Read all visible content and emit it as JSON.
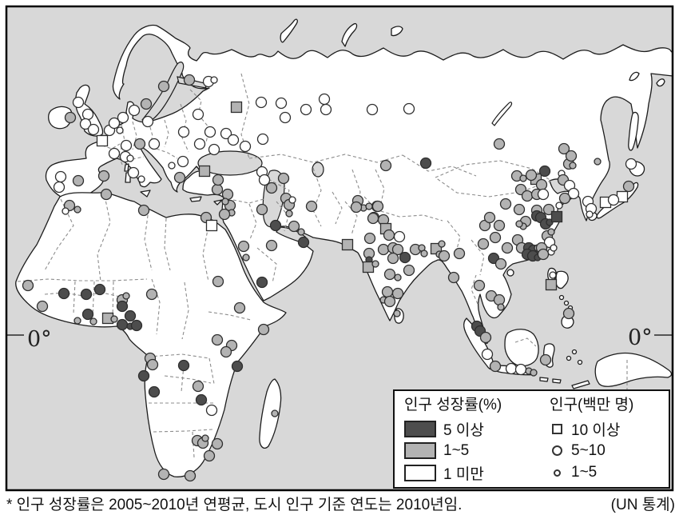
{
  "colors": {
    "ocean": "#d8d8d8",
    "land": "#ffffff",
    "coast": "#1c1c1c",
    "border_dash": "#8c8c8c",
    "marker_stroke": "#2e2e2e",
    "high": "#4d4d4d",
    "mid": "#b3b3b3",
    "low": "#ffffff"
  },
  "map": {
    "equator": {
      "left": "0°",
      "right": "0°"
    },
    "cities": [
      [
        98,
        128,
        "l",
        "b"
      ],
      [
        110,
        143,
        "l",
        "b"
      ],
      [
        107,
        155,
        "l",
        "b"
      ],
      [
        117,
        162,
        "l",
        "b"
      ],
      [
        88,
        147,
        "m",
        "b"
      ],
      [
        128,
        176,
        "l",
        "q"
      ],
      [
        137,
        163,
        "l",
        "b"
      ],
      [
        143,
        154,
        "l",
        "b"
      ],
      [
        150,
        163,
        "l",
        "s"
      ],
      [
        154,
        147,
        "l",
        "b"
      ],
      [
        168,
        138,
        "l",
        "b"
      ],
      [
        183,
        130,
        "m",
        "b"
      ],
      [
        205,
        108,
        "m",
        "b"
      ],
      [
        237,
        100,
        "m",
        "b"
      ],
      [
        261,
        102,
        "l",
        "b"
      ],
      [
        268,
        100,
        "l",
        "s"
      ],
      [
        185,
        152,
        "l",
        "b"
      ],
      [
        158,
        182,
        "l",
        "b"
      ],
      [
        143,
        192,
        "l",
        "b"
      ],
      [
        175,
        180,
        "m",
        "b"
      ],
      [
        193,
        180,
        "l",
        "b"
      ],
      [
        157,
        196,
        "l",
        "b"
      ],
      [
        163,
        198,
        "l",
        "s"
      ],
      [
        98,
        226,
        "m",
        "b"
      ],
      [
        130,
        220,
        "m",
        "b"
      ],
      [
        76,
        221,
        "l",
        "b"
      ],
      [
        74,
        234,
        "l",
        "b"
      ],
      [
        167,
        216,
        "l",
        "b"
      ],
      [
        177,
        224,
        "l",
        "s"
      ],
      [
        229,
        202,
        "l",
        "b"
      ],
      [
        215,
        207,
        "l",
        "s"
      ],
      [
        225,
        222,
        "m",
        "b"
      ],
      [
        272,
        237,
        "m",
        "b"
      ],
      [
        296,
        134,
        "m",
        "q"
      ],
      [
        248,
        143,
        "l",
        "b"
      ],
      [
        230,
        165,
        "l",
        "b"
      ],
      [
        263,
        165,
        "l",
        "b"
      ],
      [
        283,
        167,
        "l",
        "b"
      ],
      [
        292,
        175,
        "l",
        "b"
      ],
      [
        250,
        180,
        "l",
        "b"
      ],
      [
        268,
        187,
        "l",
        "b"
      ],
      [
        327,
        128,
        "l",
        "b"
      ],
      [
        352,
        129,
        "l",
        "b"
      ],
      [
        383,
        137,
        "l",
        "b"
      ],
      [
        406,
        124,
        "l",
        "b"
      ],
      [
        408,
        137,
        "l",
        "b"
      ],
      [
        466,
        137,
        "l",
        "b"
      ],
      [
        512,
        136,
        "l",
        "b"
      ],
      [
        357,
        147,
        "l",
        "b"
      ],
      [
        329,
        174,
        "l",
        "b"
      ],
      [
        307,
        183,
        "l",
        "b"
      ],
      [
        483,
        207,
        "m",
        "b"
      ],
      [
        533,
        204,
        "h",
        "b"
      ],
      [
        625,
        180,
        "m",
        "b"
      ],
      [
        328,
        215,
        "l",
        "b"
      ],
      [
        331,
        225,
        "l",
        "b"
      ],
      [
        355,
        223,
        "m",
        "b"
      ],
      [
        340,
        235,
        "m",
        "b"
      ],
      [
        358,
        248,
        "m",
        "b"
      ],
      [
        362,
        256,
        "m",
        "b"
      ],
      [
        366,
        250,
        "l",
        "s"
      ],
      [
        390,
        258,
        "m",
        "b"
      ],
      [
        362,
        267,
        "m",
        "s"
      ],
      [
        368,
        283,
        "m",
        "b"
      ],
      [
        377,
        290,
        "m",
        "s"
      ],
      [
        448,
        251,
        "m",
        "b"
      ],
      [
        455,
        260,
        "m",
        "s"
      ],
      [
        472,
        258,
        "m",
        "b"
      ],
      [
        468,
        272,
        "m",
        "b"
      ],
      [
        446,
        259,
        "m",
        "b"
      ],
      [
        328,
        262,
        "m",
        "b"
      ],
      [
        285,
        243,
        "m",
        "b"
      ],
      [
        288,
        257,
        "m",
        "b"
      ],
      [
        282,
        252,
        "m",
        "s"
      ],
      [
        290,
        266,
        "m",
        "s"
      ],
      [
        281,
        268,
        "m",
        "b"
      ],
      [
        345,
        282,
        "h",
        "b"
      ],
      [
        340,
        307,
        "m",
        "b"
      ],
      [
        305,
        308,
        "m",
        "b"
      ],
      [
        308,
        322,
        "m",
        "s"
      ],
      [
        380,
        303,
        "h",
        "b"
      ],
      [
        328,
        353,
        "h",
        "b"
      ],
      [
        256,
        214,
        "m",
        "q"
      ],
      [
        273,
        225,
        "m",
        "b"
      ],
      [
        87,
        257,
        "m",
        "b"
      ],
      [
        97,
        262,
        "m",
        "s"
      ],
      [
        82,
        264,
        "l",
        "s"
      ],
      [
        133,
        243,
        "m",
        "b"
      ],
      [
        180,
        263,
        "m",
        "b"
      ],
      [
        258,
        272,
        "m",
        "b"
      ],
      [
        265,
        282,
        "l",
        "q"
      ],
      [
        273,
        352,
        "m",
        "b"
      ],
      [
        300,
        385,
        "m",
        "b"
      ],
      [
        330,
        412,
        "m",
        "b"
      ],
      [
        35,
        357,
        "m",
        "b"
      ],
      [
        53,
        383,
        "m",
        "b"
      ],
      [
        80,
        367,
        "h",
        "b"
      ],
      [
        108,
        368,
        "h",
        "b"
      ],
      [
        125,
        362,
        "h",
        "b"
      ],
      [
        153,
        375,
        "m",
        "b"
      ],
      [
        158,
        370,
        "m",
        "s"
      ],
      [
        153,
        383,
        "h",
        "b"
      ],
      [
        163,
        395,
        "h",
        "b"
      ],
      [
        190,
        368,
        "m",
        "b"
      ],
      [
        110,
        393,
        "h",
        "b"
      ],
      [
        117,
        402,
        "m",
        "s"
      ],
      [
        135,
        398,
        "m",
        "q"
      ],
      [
        143,
        399,
        "m",
        "s"
      ],
      [
        97,
        401,
        "m",
        "s"
      ],
      [
        153,
        406,
        "h",
        "b"
      ],
      [
        163,
        408,
        "h",
        "s"
      ],
      [
        171,
        407,
        "h",
        "b"
      ],
      [
        188,
        448,
        "m",
        "b"
      ],
      [
        191,
        456,
        "m",
        "b"
      ],
      [
        230,
        457,
        "h",
        "b"
      ],
      [
        180,
        470,
        "h",
        "b"
      ],
      [
        193,
        490,
        "h",
        "b"
      ],
      [
        248,
        483,
        "m",
        "b"
      ],
      [
        252,
        500,
        "h",
        "b"
      ],
      [
        265,
        513,
        "l",
        "b"
      ],
      [
        272,
        425,
        "m",
        "b"
      ],
      [
        290,
        432,
        "m",
        "b"
      ],
      [
        283,
        440,
        "m",
        "b"
      ],
      [
        297,
        458,
        "h",
        "b"
      ],
      [
        344,
        517,
        "m",
        "s"
      ],
      [
        247,
        551,
        "m",
        "b"
      ],
      [
        254,
        554,
        "m",
        "b"
      ],
      [
        257,
        548,
        "m",
        "s"
      ],
      [
        272,
        555,
        "m",
        "b"
      ],
      [
        262,
        570,
        "m",
        "b"
      ],
      [
        205,
        593,
        "m",
        "b"
      ],
      [
        238,
        595,
        "m",
        "b"
      ],
      [
        462,
        258,
        "m",
        "s"
      ],
      [
        473,
        258,
        "m",
        "b"
      ],
      [
        467,
        273,
        "m",
        "b"
      ],
      [
        480,
        275,
        "m",
        "b"
      ],
      [
        483,
        286,
        "m",
        "q"
      ],
      [
        487,
        294,
        "m",
        "b"
      ],
      [
        463,
        298,
        "m",
        "b"
      ],
      [
        480,
        312,
        "m",
        "b"
      ],
      [
        492,
        310,
        "m",
        "b"
      ],
      [
        500,
        296,
        "l",
        "b"
      ],
      [
        498,
        312,
        "m",
        "b"
      ],
      [
        435,
        306,
        "m",
        "q"
      ],
      [
        462,
        317,
        "m",
        "b"
      ],
      [
        462,
        325,
        "h",
        "s"
      ],
      [
        461,
        334,
        "m",
        "q"
      ],
      [
        470,
        330,
        "m",
        "s"
      ],
      [
        492,
        323,
        "m",
        "b"
      ],
      [
        507,
        322,
        "h",
        "b"
      ],
      [
        512,
        338,
        "m",
        "b"
      ],
      [
        520,
        312,
        "m",
        "b"
      ],
      [
        528,
        310,
        "m",
        "s"
      ],
      [
        531,
        317,
        "m",
        "s"
      ],
      [
        546,
        311,
        "m",
        "q"
      ],
      [
        550,
        318,
        "m",
        "s"
      ],
      [
        556,
        320,
        "m",
        "b"
      ],
      [
        553,
        305,
        "m",
        "s"
      ],
      [
        488,
        343,
        "m",
        "b"
      ],
      [
        498,
        347,
        "m",
        "s"
      ],
      [
        485,
        365,
        "m",
        "b"
      ],
      [
        498,
        367,
        "m",
        "b"
      ],
      [
        480,
        375,
        "m",
        "s"
      ],
      [
        488,
        377,
        "m",
        "b"
      ],
      [
        497,
        392,
        "m",
        "s"
      ],
      [
        568,
        347,
        "m",
        "b"
      ],
      [
        575,
        317,
        "m",
        "b"
      ],
      [
        671,
        224,
        "m",
        "q"
      ],
      [
        678,
        231,
        "m",
        "b"
      ],
      [
        647,
        220,
        "m",
        "b"
      ],
      [
        655,
        223,
        "m",
        "s"
      ],
      [
        665,
        219,
        "m",
        "b"
      ],
      [
        682,
        214,
        "h",
        "b"
      ],
      [
        712,
        205,
        "m",
        "b"
      ],
      [
        717,
        207,
        "m",
        "s"
      ],
      [
        706,
        186,
        "m",
        "b"
      ],
      [
        715,
        195,
        "m",
        "b"
      ],
      [
        748,
        202,
        "m",
        "s"
      ],
      [
        652,
        237,
        "m",
        "b"
      ],
      [
        660,
        245,
        "m",
        "b"
      ],
      [
        672,
        243,
        "m",
        "b"
      ],
      [
        680,
        243,
        "l",
        "b"
      ],
      [
        703,
        217,
        "l",
        "s"
      ],
      [
        705,
        225,
        "m",
        "b"
      ],
      [
        713,
        232,
        "l",
        "b"
      ],
      [
        718,
        242,
        "l",
        "b"
      ],
      [
        707,
        248,
        "m",
        "b"
      ],
      [
        700,
        257,
        "l",
        "s"
      ],
      [
        650,
        262,
        "m",
        "b"
      ],
      [
        658,
        277,
        "m",
        "b"
      ],
      [
        655,
        283,
        "m",
        "s"
      ],
      [
        650,
        280,
        "m",
        "s"
      ],
      [
        672,
        263,
        "m",
        "b"
      ],
      [
        687,
        262,
        "m",
        "b"
      ],
      [
        672,
        270,
        "h",
        "b"
      ],
      [
        677,
        272,
        "h",
        "b"
      ],
      [
        683,
        280,
        "h",
        "b"
      ],
      [
        688,
        278,
        "h",
        "s"
      ],
      [
        697,
        271,
        "h",
        "q"
      ],
      [
        685,
        295,
        "m",
        "b"
      ],
      [
        690,
        290,
        "m",
        "s"
      ],
      [
        688,
        303,
        "l",
        "b"
      ],
      [
        690,
        315,
        "l",
        "s"
      ],
      [
        693,
        310,
        "l",
        "s"
      ],
      [
        648,
        300,
        "m",
        "b"
      ],
      [
        653,
        310,
        "m",
        "b"
      ],
      [
        662,
        310,
        "h",
        "b"
      ],
      [
        668,
        313,
        "h",
        "b"
      ],
      [
        673,
        310,
        "m",
        "s"
      ],
      [
        678,
        310,
        "m",
        "b"
      ],
      [
        660,
        318,
        "h",
        "b"
      ],
      [
        667,
        320,
        "h",
        "b"
      ],
      [
        673,
        322,
        "h",
        "s"
      ],
      [
        680,
        318,
        "m",
        "b"
      ],
      [
        618,
        323,
        "h",
        "b"
      ],
      [
        627,
        330,
        "m",
        "b"
      ],
      [
        607,
        282,
        "m",
        "b"
      ],
      [
        613,
        272,
        "m",
        "b"
      ],
      [
        625,
        282,
        "m",
        "b"
      ],
      [
        633,
        255,
        "m",
        "b"
      ],
      [
        620,
        297,
        "m",
        "b"
      ],
      [
        635,
        310,
        "m",
        "b"
      ],
      [
        605,
        305,
        "m",
        "b"
      ],
      [
        692,
        344,
        "l",
        "s"
      ],
      [
        736,
        252,
        "l",
        "b"
      ],
      [
        740,
        261,
        "l",
        "b"
      ],
      [
        738,
        268,
        "l",
        "s"
      ],
      [
        758,
        253,
        "l",
        "q"
      ],
      [
        779,
        246,
        "l",
        "q"
      ],
      [
        768,
        250,
        "l",
        "b"
      ],
      [
        787,
        233,
        "m",
        "b"
      ],
      [
        790,
        205,
        "l",
        "b"
      ],
      [
        600,
        357,
        "m",
        "b"
      ],
      [
        615,
        370,
        "m",
        "b"
      ],
      [
        625,
        375,
        "m",
        "b"
      ],
      [
        627,
        384,
        "m",
        "s"
      ],
      [
        597,
        408,
        "h",
        "b"
      ],
      [
        601,
        414,
        "h",
        "b"
      ],
      [
        608,
        422,
        "m",
        "b"
      ],
      [
        610,
        443,
        "l",
        "b"
      ],
      [
        620,
        458,
        "m",
        "b"
      ],
      [
        640,
        461,
        "l",
        "b"
      ],
      [
        652,
        462,
        "l",
        "b"
      ],
      [
        662,
        464,
        "m",
        "s"
      ],
      [
        668,
        466,
        "m",
        "s"
      ],
      [
        683,
        450,
        "m",
        "b"
      ],
      [
        690,
        356,
        "m",
        "q"
      ],
      [
        712,
        392,
        "m",
        "b"
      ]
    ]
  },
  "legend": {
    "growth": {
      "title": "인구 성장률(%)",
      "items": [
        {
          "label": "5 이상",
          "key": "high"
        },
        {
          "label": "1~5",
          "key": "mid"
        },
        {
          "label": "1 미만",
          "key": "low"
        }
      ]
    },
    "pop": {
      "title": "인구(백만 명)",
      "items": [
        {
          "label": "10 이상",
          "marker": "square"
        },
        {
          "label": "5~10",
          "marker": "circle-md"
        },
        {
          "label": "1~5",
          "marker": "circle-sm"
        }
      ]
    }
  },
  "footnote": {
    "note": "* 인구 성장률은 2005~2010년 연평균, 도시 인구 기준 연도는 2010년임.",
    "source": "(UN 통계)"
  }
}
